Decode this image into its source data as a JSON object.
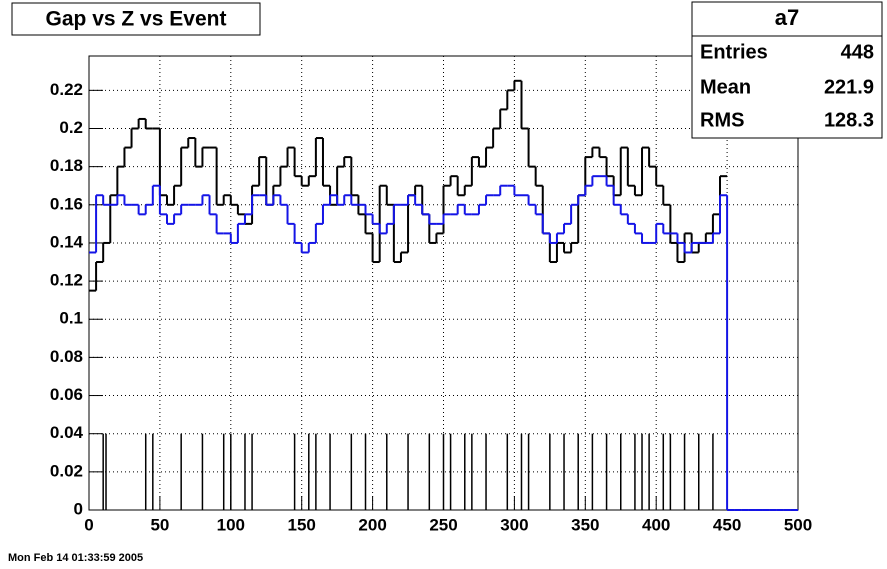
{
  "chart_data": {
    "type": "step",
    "title": "Gap vs Z vs Event",
    "timestamp": "Mon Feb 14 01:33:59 2005",
    "stats": {
      "name": "a7",
      "labels": [
        "Entries",
        "Mean",
        "RMS"
      ],
      "values": [
        448,
        221.9,
        128.3
      ]
    },
    "bin_width": 5,
    "x": [
      0,
      5,
      10,
      15,
      20,
      25,
      30,
      35,
      40,
      45,
      50,
      55,
      60,
      65,
      70,
      75,
      80,
      85,
      90,
      95,
      100,
      105,
      110,
      115,
      120,
      125,
      130,
      135,
      140,
      145,
      150,
      155,
      160,
      165,
      170,
      175,
      180,
      185,
      190,
      195,
      200,
      205,
      210,
      215,
      220,
      225,
      230,
      235,
      240,
      245,
      250,
      255,
      260,
      265,
      270,
      275,
      280,
      285,
      290,
      295,
      300,
      305,
      310,
      315,
      320,
      325,
      330,
      335,
      340,
      345,
      350,
      355,
      360,
      365,
      370,
      375,
      380,
      385,
      390,
      395,
      400,
      405,
      410,
      415,
      420,
      425,
      430,
      435,
      440,
      445,
      450,
      455,
      460,
      465,
      470,
      475,
      480,
      485,
      490,
      495
    ],
    "series": [
      {
        "color": "#000000",
        "values": [
          0.115,
          0.13,
          0.14,
          0.165,
          0.18,
          0.19,
          0.2,
          0.205,
          0.2,
          0.2,
          0.165,
          0.16,
          0.17,
          0.19,
          0.195,
          0.18,
          0.19,
          0.19,
          0.16,
          0.165,
          0.16,
          0.155,
          0.15,
          0.17,
          0.185,
          0.16,
          0.17,
          0.18,
          0.19,
          0.175,
          0.17,
          0.175,
          0.195,
          0.17,
          0.16,
          0.18,
          0.185,
          0.165,
          0.155,
          0.145,
          0.13,
          0.17,
          0.16,
          0.13,
          0.135,
          0.165,
          0.17,
          0.155,
          0.14,
          0.145,
          0.17,
          0.175,
          0.165,
          0.17,
          0.185,
          0.18,
          0.19,
          0.2,
          0.21,
          0.22,
          0.225,
          0.2,
          0.18,
          0.17,
          0.145,
          0.13,
          0.14,
          0.135,
          0.14,
          0.165,
          0.185,
          0.19,
          0.185,
          0.175,
          0.165,
          0.19,
          0.17,
          0.165,
          0.19,
          0.18,
          0.17,
          0.16,
          0.14,
          0.13,
          0.145,
          0.135,
          0.14,
          0.145,
          0.155,
          0.175,
          null,
          null,
          null,
          null,
          null,
          null,
          null,
          null,
          null,
          null
        ]
      },
      {
        "color": "#1414e6",
        "values": [
          0.135,
          0.165,
          0.16,
          0.16,
          0.165,
          0.16,
          0.16,
          0.155,
          0.16,
          0.17,
          0.155,
          0.15,
          0.155,
          0.16,
          0.16,
          0.16,
          0.165,
          0.155,
          0.145,
          0.145,
          0.14,
          0.15,
          0.155,
          0.165,
          0.165,
          0.16,
          0.165,
          0.16,
          0.15,
          0.14,
          0.135,
          0.14,
          0.15,
          0.16,
          0.165,
          0.16,
          0.165,
          0.16,
          0.16,
          0.155,
          0.15,
          0.145,
          0.15,
          0.16,
          0.16,
          0.165,
          0.16,
          0.155,
          0.15,
          0.15,
          0.155,
          0.155,
          0.16,
          0.155,
          0.155,
          0.16,
          0.165,
          0.165,
          0.17,
          0.17,
          0.165,
          0.165,
          0.16,
          0.155,
          0.145,
          0.14,
          0.145,
          0.15,
          0.16,
          0.165,
          0.17,
          0.175,
          0.175,
          0.17,
          0.16,
          0.155,
          0.15,
          0.145,
          0.14,
          0.14,
          0.15,
          0.145,
          0.145,
          0.14,
          0.135,
          0.14,
          0.14,
          0.14,
          0.145,
          0.165,
          0,
          0,
          0,
          0,
          0,
          0,
          0,
          0,
          0,
          0
        ]
      }
    ],
    "spikes": {
      "color": "#000000",
      "x": [
        10,
        12,
        40,
        45,
        65,
        80,
        95,
        100,
        110,
        115,
        145,
        155,
        160,
        170,
        185,
        195,
        210,
        225,
        240,
        250,
        255,
        265,
        270,
        280,
        295,
        305,
        310,
        325,
        335,
        345,
        355,
        365,
        375,
        385,
        390,
        395,
        405,
        410,
        420,
        430,
        440
      ],
      "values": [
        0.04,
        0.04,
        0.04,
        0.04,
        0.04,
        0.04,
        0.04,
        0.04,
        0.04,
        0.04,
        0.04,
        0.04,
        0.04,
        0.04,
        0.04,
        0.04,
        0.04,
        0.04,
        0.04,
        0.04,
        0.04,
        0.04,
        0.04,
        0.04,
        0.04,
        0.04,
        0.04,
        0.04,
        0.04,
        0.04,
        0.04,
        0.04,
        0.04,
        0.04,
        0.04,
        0.04,
        0.04,
        0.04,
        0.04,
        0.04,
        0.04
      ]
    },
    "xlim": [
      0,
      500
    ],
    "xticks": [
      0,
      50,
      100,
      150,
      200,
      250,
      300,
      350,
      400,
      450,
      500
    ],
    "ylim": [
      0,
      0.238
    ],
    "yticks": [
      0,
      0.02,
      0.04,
      0.06,
      0.08,
      0.1,
      0.12,
      0.14,
      0.16,
      0.18,
      0.2,
      0.22
    ],
    "grid": true
  }
}
